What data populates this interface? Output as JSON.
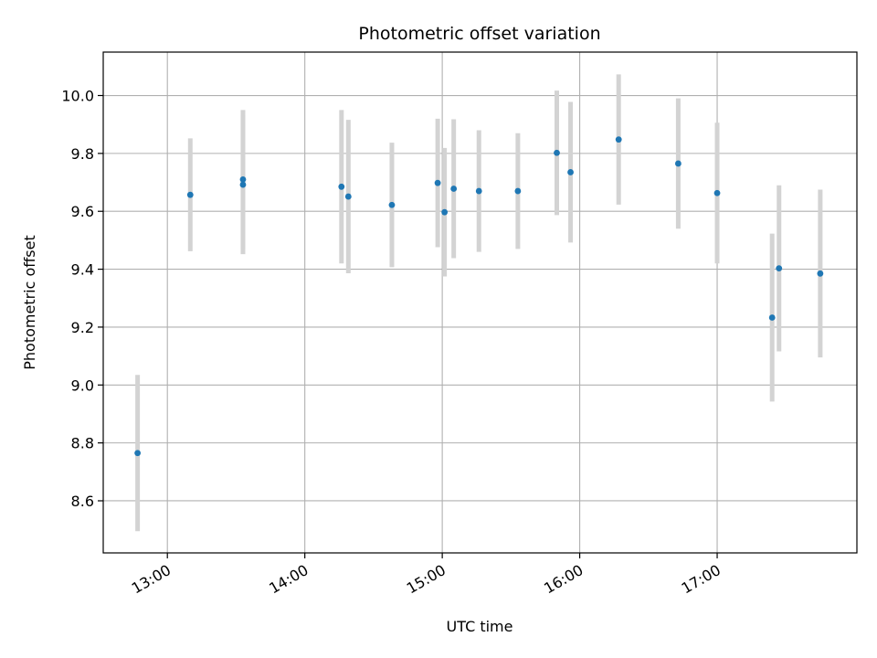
{
  "chart_data": {
    "type": "scatter",
    "title": "Photometric offset variation",
    "xlabel": "UTC time",
    "ylabel": "Photometric offset",
    "x_ticks": [
      {
        "value": 780,
        "label": "13:00"
      },
      {
        "value": 840,
        "label": "14:00"
      },
      {
        "value": 900,
        "label": "15:00"
      },
      {
        "value": 960,
        "label": "16:00"
      },
      {
        "value": 1020,
        "label": "17:00"
      }
    ],
    "y_ticks": [
      {
        "value": 8.6,
        "label": "8.6"
      },
      {
        "value": 8.8,
        "label": "8.8"
      },
      {
        "value": 9.0,
        "label": "9.0"
      },
      {
        "value": 9.2,
        "label": "9.2"
      },
      {
        "value": 9.4,
        "label": "9.4"
      },
      {
        "value": 9.6,
        "label": "9.6"
      },
      {
        "value": 9.8,
        "label": "9.8"
      },
      {
        "value": 10.0,
        "label": "10.0"
      }
    ],
    "xlim": [
      "12:32",
      "18:01"
    ],
    "ylim": [
      8.42,
      10.15
    ],
    "grid": true,
    "colors": {
      "point": "#1f77b4",
      "errorbar": "#d3d3d3",
      "grid": "#b0b0b0"
    },
    "points": [
      {
        "x": "12:47",
        "y": 8.765,
        "yerr": 0.27
      },
      {
        "x": "13:10",
        "y": 9.657,
        "yerr": 0.195
      },
      {
        "x": "13:33",
        "y": 9.692,
        "yerr": 0.24
      },
      {
        "x": "13:33",
        "y": 9.71,
        "yerr": 0.24
      },
      {
        "x": "14:16",
        "y": 9.685,
        "yerr": 0.265
      },
      {
        "x": "14:19",
        "y": 9.651,
        "yerr": 0.265
      },
      {
        "x": "14:38",
        "y": 9.622,
        "yerr": 0.215
      },
      {
        "x": "14:58",
        "y": 9.698,
        "yerr": 0.222
      },
      {
        "x": "15:01",
        "y": 9.597,
        "yerr": 0.222
      },
      {
        "x": "15:05",
        "y": 9.678,
        "yerr": 0.24
      },
      {
        "x": "15:16",
        "y": 9.67,
        "yerr": 0.21
      },
      {
        "x": "15:33",
        "y": 9.67,
        "yerr": 0.2
      },
      {
        "x": "15:50",
        "y": 9.802,
        "yerr": 0.215
      },
      {
        "x": "15:56",
        "y": 9.735,
        "yerr": 0.243
      },
      {
        "x": "16:17",
        "y": 9.848,
        "yerr": 0.225
      },
      {
        "x": "16:43",
        "y": 9.765,
        "yerr": 0.225
      },
      {
        "x": "17:00",
        "y": 9.663,
        "yerr": 0.243
      },
      {
        "x": "17:24",
        "y": 9.233,
        "yerr": 0.29
      },
      {
        "x": "17:27",
        "y": 9.403,
        "yerr": 0.287
      },
      {
        "x": "17:45",
        "y": 9.385,
        "yerr": 0.29
      }
    ]
  }
}
